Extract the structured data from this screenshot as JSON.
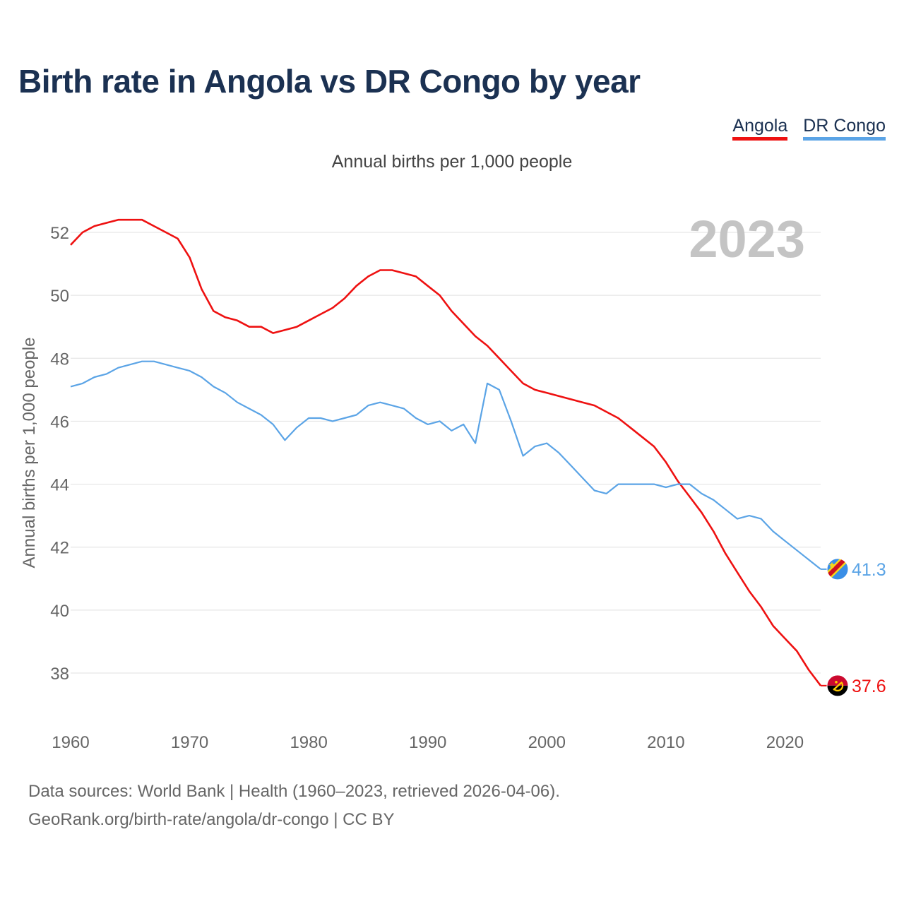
{
  "title": "Birth rate in Angola vs DR Congo by year",
  "subtitle": "Annual births per 1,000 people",
  "year_overlay": "2023",
  "legend": [
    {
      "label": "Angola",
      "color": "#ee1111"
    },
    {
      "label": "DR Congo",
      "color": "#5ba4e6"
    }
  ],
  "footer": {
    "line1": "Data sources: World Bank | Health (1960–2023, retrieved 2026-04-06).",
    "line2": "GeoRank.org/birth-rate/angola/dr-congo | CC BY"
  },
  "chart_data": {
    "type": "line",
    "title": "Birth rate in Angola vs DR Congo by year",
    "xlabel": "",
    "ylabel": "Annual births per 1,000 people",
    "xlim": [
      1960,
      2023
    ],
    "ylim": [
      37,
      53
    ],
    "xticks": [
      1960,
      1970,
      1980,
      1990,
      2000,
      2010,
      2020
    ],
    "yticks": [
      38,
      40,
      42,
      44,
      46,
      48,
      50,
      52
    ],
    "grid": true,
    "legend_position": "top-right",
    "x": [
      1960,
      1961,
      1962,
      1963,
      1964,
      1965,
      1966,
      1967,
      1968,
      1969,
      1970,
      1971,
      1972,
      1973,
      1974,
      1975,
      1976,
      1977,
      1978,
      1979,
      1980,
      1981,
      1982,
      1983,
      1984,
      1985,
      1986,
      1987,
      1988,
      1989,
      1990,
      1991,
      1992,
      1993,
      1994,
      1995,
      1996,
      1997,
      1998,
      1999,
      2000,
      2001,
      2002,
      2003,
      2004,
      2005,
      2006,
      2007,
      2008,
      2009,
      2010,
      2011,
      2012,
      2013,
      2014,
      2015,
      2016,
      2017,
      2018,
      2019,
      2020,
      2021,
      2022,
      2023
    ],
    "series": [
      {
        "name": "Angola",
        "color": "#ee1111",
        "end_label": "37.6",
        "values": [
          51.6,
          52.0,
          52.2,
          52.3,
          52.4,
          52.4,
          52.4,
          52.2,
          52.0,
          51.8,
          51.2,
          50.2,
          49.5,
          49.3,
          49.2,
          49.0,
          49.0,
          48.8,
          48.9,
          49.0,
          49.2,
          49.4,
          49.6,
          49.9,
          50.3,
          50.6,
          50.8,
          50.8,
          50.7,
          50.6,
          50.3,
          50.0,
          49.5,
          49.1,
          48.7,
          48.4,
          48.0,
          47.6,
          47.2,
          47.0,
          46.9,
          46.8,
          46.7,
          46.6,
          46.5,
          46.3,
          46.1,
          45.8,
          45.5,
          45.2,
          44.7,
          44.1,
          43.6,
          43.1,
          42.5,
          41.8,
          41.2,
          40.6,
          40.1,
          39.5,
          39.1,
          38.7,
          38.1,
          37.6
        ]
      },
      {
        "name": "DR Congo",
        "color": "#5ba4e6",
        "end_label": "41.3",
        "values": [
          47.1,
          47.2,
          47.4,
          47.5,
          47.7,
          47.8,
          47.9,
          47.9,
          47.8,
          47.7,
          47.6,
          47.4,
          47.1,
          46.9,
          46.6,
          46.4,
          46.2,
          45.9,
          45.4,
          45.8,
          46.1,
          46.1,
          46.0,
          46.1,
          46.2,
          46.5,
          46.6,
          46.5,
          46.4,
          46.1,
          45.9,
          46.0,
          45.7,
          45.9,
          45.3,
          47.2,
          47.0,
          46.0,
          44.9,
          45.2,
          45.3,
          45.0,
          44.6,
          44.2,
          43.8,
          43.7,
          44.0,
          44.0,
          44.0,
          44.0,
          43.9,
          44.0,
          44.0,
          43.7,
          43.5,
          43.2,
          42.9,
          43.0,
          42.9,
          42.5,
          42.2,
          41.9,
          41.6,
          41.3
        ]
      }
    ]
  }
}
